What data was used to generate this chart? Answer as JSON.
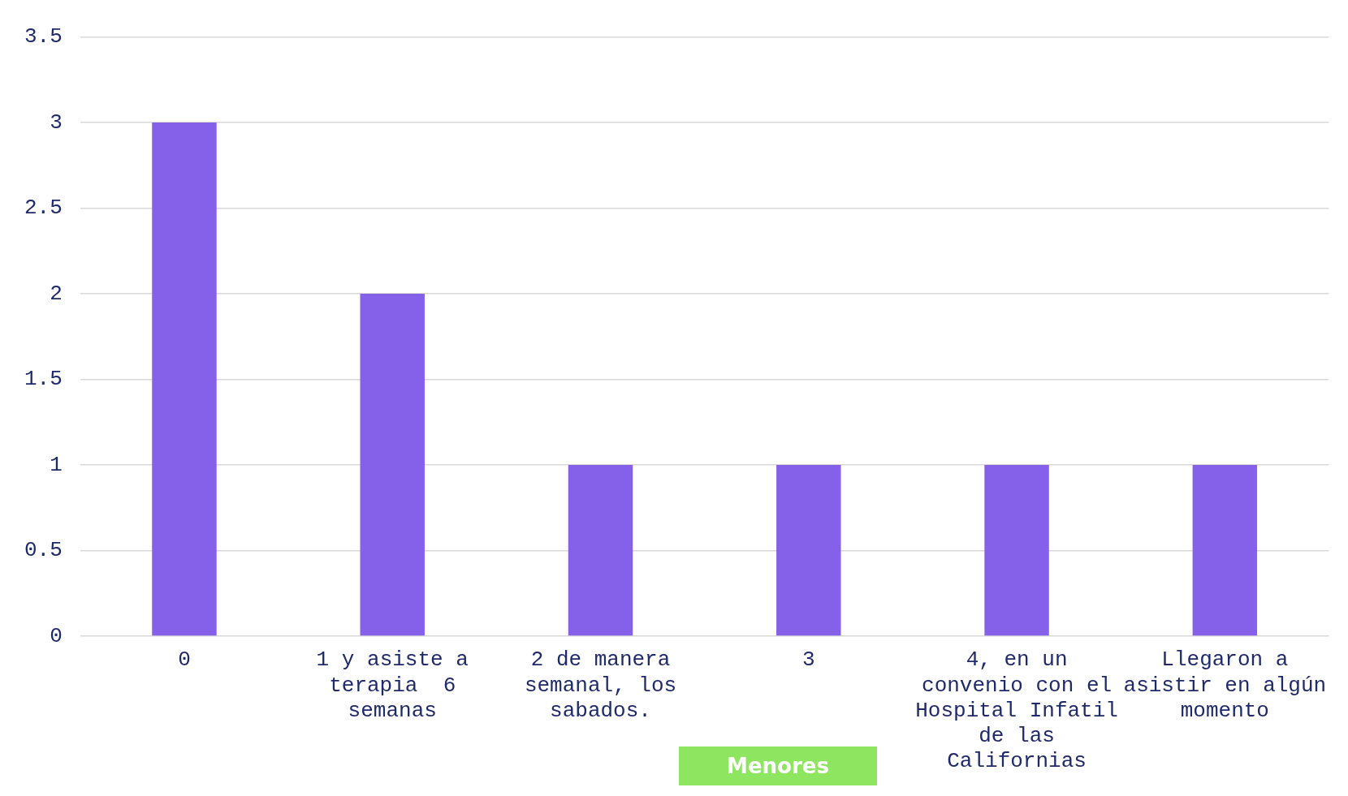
{
  "chart_data": {
    "type": "bar",
    "categories": [
      "0",
      "1 y asiste a terapia  6 semanas",
      "2 de manera semanal, los sabados.",
      "3",
      "4, en un convenio con el Hospital Infatil de las Californias",
      "Llegaron a asistir en algún momento"
    ],
    "values": [
      3,
      2,
      1,
      1,
      1,
      1
    ],
    "color": "#8560e8",
    "ylim": [
      0,
      3.5
    ],
    "yticks": [
      0,
      0.5,
      1,
      1.5,
      2,
      2.5,
      3,
      3.5
    ],
    "grid": "y",
    "legend": false,
    "annotations": [
      "Menores"
    ]
  }
}
